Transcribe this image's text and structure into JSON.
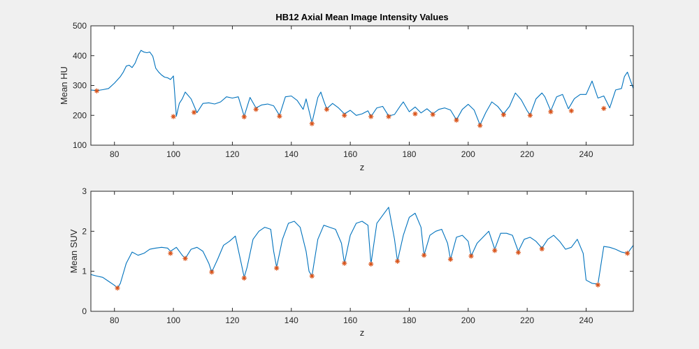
{
  "chart_data": [
    {
      "type": "line",
      "title": "HB12 Axial Mean Image Intensity Values",
      "xlabel": "z",
      "ylabel": "Mean HU",
      "xlim": [
        72,
        256
      ],
      "ylim": [
        100,
        500
      ],
      "xticks": [
        80,
        100,
        120,
        140,
        160,
        180,
        200,
        220,
        240
      ],
      "yticks": [
        100,
        200,
        300,
        400,
        500
      ],
      "grid": false,
      "colors": {
        "line": "#0072BD",
        "marker": "#D95319"
      },
      "series": [
        {
          "x": [
            72,
            74,
            76,
            78,
            80,
            82,
            83,
            84,
            85,
            86,
            87,
            88,
            89,
            90,
            91,
            92,
            93,
            94,
            95,
            96,
            97,
            98,
            99,
            100,
            101,
            102,
            103,
            104,
            106,
            108,
            110,
            112,
            114,
            116,
            118,
            120,
            122,
            124,
            126,
            128,
            130,
            132,
            134,
            136,
            138,
            140,
            142,
            144,
            145,
            147,
            149,
            150,
            151,
            152,
            154,
            156,
            158,
            160,
            162,
            164,
            166,
            167,
            169,
            171,
            173,
            175,
            177,
            178,
            180,
            182,
            184,
            186,
            188,
            190,
            192,
            194,
            196,
            198,
            200,
            202,
            204,
            206,
            208,
            210,
            212,
            214,
            216,
            218,
            220,
            221,
            223,
            225,
            226,
            228,
            230,
            232,
            234,
            236,
            238,
            240,
            242,
            244,
            246,
            248,
            250,
            252,
            253,
            254,
            256
          ],
          "values": [
            285,
            283,
            286,
            290,
            308,
            330,
            345,
            365,
            368,
            360,
            375,
            400,
            418,
            412,
            410,
            412,
            398,
            358,
            345,
            335,
            328,
            326,
            320,
            332,
            197,
            240,
            255,
            278,
            255,
            209,
            240,
            242,
            238,
            245,
            262,
            258,
            262,
            197,
            260,
            225,
            235,
            238,
            232,
            200,
            262,
            265,
            250,
            220,
            255,
            175,
            260,
            278,
            248,
            222,
            240,
            225,
            205,
            217,
            200,
            205,
            215,
            196,
            225,
            230,
            198,
            203,
            232,
            245,
            212,
            228,
            208,
            222,
            205,
            220,
            225,
            218,
            185,
            220,
            237,
            218,
            168,
            210,
            245,
            230,
            205,
            230,
            275,
            252,
            215,
            202,
            255,
            275,
            262,
            215,
            262,
            270,
            222,
            256,
            270,
            270,
            315,
            258,
            265,
            225,
            285,
            290,
            330,
            345,
            290
          ],
          "markers": {
            "x": [
              74,
              100,
              107,
              124,
              128,
              136,
              147,
              152,
              158,
              167,
              173,
              182,
              188,
              196,
              204,
              212,
              221,
              228,
              235,
              246
            ],
            "values": [
              282,
              196,
              210,
              195,
              220,
              197,
              172,
              220,
              200,
              196,
              196,
              205,
              203,
              184,
              166,
              202,
              200,
              212,
              215,
              223
            ]
          }
        }
      ]
    },
    {
      "type": "line",
      "title": "",
      "xlabel": "z",
      "ylabel": "Mean SUV",
      "xlim": [
        72,
        256
      ],
      "ylim": [
        0,
        3
      ],
      "xticks": [
        80,
        100,
        120,
        140,
        160,
        180,
        200,
        220,
        240
      ],
      "yticks": [
        0,
        1,
        2,
        3
      ],
      "grid": false,
      "colors": {
        "line": "#0072BD",
        "marker": "#D95319"
      },
      "series": [
        {
          "x": [
            72,
            74,
            76,
            78,
            80,
            81,
            82,
            84,
            86,
            88,
            90,
            92,
            94,
            96,
            98,
            99,
            101,
            103,
            104,
            106,
            108,
            110,
            112,
            113,
            115,
            117,
            119,
            121,
            123,
            124,
            125,
            127,
            129,
            131,
            133,
            134,
            135,
            137,
            139,
            141,
            143,
            145,
            146,
            147,
            149,
            151,
            153,
            155,
            157,
            158,
            160,
            162,
            164,
            166,
            167,
            169,
            171,
            173,
            175,
            176,
            178,
            180,
            182,
            184,
            185,
            187,
            189,
            191,
            193,
            194,
            196,
            198,
            200,
            201,
            203,
            205,
            207,
            209,
            211,
            213,
            215,
            217,
            219,
            221,
            223,
            225,
            227,
            229,
            231,
            233,
            235,
            237,
            239,
            240,
            242,
            244,
            246,
            248,
            250,
            252,
            254,
            256
          ],
          "values": [
            0.92,
            0.88,
            0.85,
            0.75,
            0.65,
            0.58,
            0.7,
            1.2,
            1.48,
            1.4,
            1.45,
            1.55,
            1.58,
            1.6,
            1.58,
            1.5,
            1.6,
            1.4,
            1.32,
            1.55,
            1.6,
            1.5,
            1.2,
            0.98,
            1.3,
            1.65,
            1.75,
            1.88,
            1.2,
            0.85,
            1.1,
            1.8,
            2.0,
            2.1,
            2.05,
            1.5,
            1.1,
            1.8,
            2.2,
            2.25,
            2.1,
            1.5,
            1.0,
            0.88,
            1.8,
            2.15,
            2.1,
            2.05,
            1.7,
            1.2,
            1.9,
            2.2,
            2.25,
            2.15,
            1.18,
            2.2,
            2.4,
            2.6,
            1.8,
            1.25,
            1.9,
            2.35,
            2.45,
            2.1,
            1.4,
            1.9,
            2.0,
            2.05,
            1.7,
            1.3,
            1.85,
            1.9,
            1.75,
            1.38,
            1.7,
            1.85,
            2.0,
            1.55,
            1.95,
            1.95,
            1.9,
            1.5,
            1.8,
            1.85,
            1.75,
            1.58,
            1.8,
            1.9,
            1.75,
            1.55,
            1.6,
            1.8,
            1.45,
            0.78,
            0.7,
            0.68,
            1.62,
            1.6,
            1.55,
            1.48,
            1.45,
            1.65
          ],
          "markers": {
            "x": [
              81,
              99,
              104,
              113,
              124,
              135,
              147,
              158,
              167,
              176,
              185,
              194,
              201,
              209,
              217,
              225,
              244,
              254
            ],
            "values": [
              0.58,
              1.45,
              1.32,
              0.98,
              0.83,
              1.08,
              0.88,
              1.2,
              1.18,
              1.25,
              1.4,
              1.3,
              1.38,
              1.52,
              1.47,
              1.56,
              0.66,
              1.45
            ]
          }
        }
      ]
    }
  ]
}
